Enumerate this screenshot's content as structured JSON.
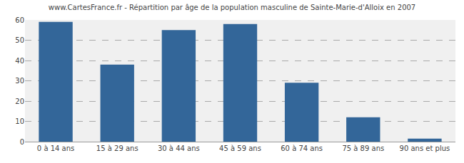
{
  "chart_data": {
    "type": "bar",
    "title": "www.CartesFrance.fr - Répartition par âge de la population masculine de Sainte-Marie-d'Alloix en 2007",
    "categories": [
      "0 à 14 ans",
      "15 à 29 ans",
      "30 à 44 ans",
      "45 à 59 ans",
      "60 à 74 ans",
      "75 à 89 ans",
      "90 ans et plus"
    ],
    "values": [
      59,
      38,
      55,
      58,
      29,
      12,
      1.5
    ],
    "color": "#336699",
    "ylim": [
      0,
      60
    ],
    "yticks": [
      0,
      10,
      20,
      30,
      40,
      50,
      60
    ],
    "grid": true
  }
}
